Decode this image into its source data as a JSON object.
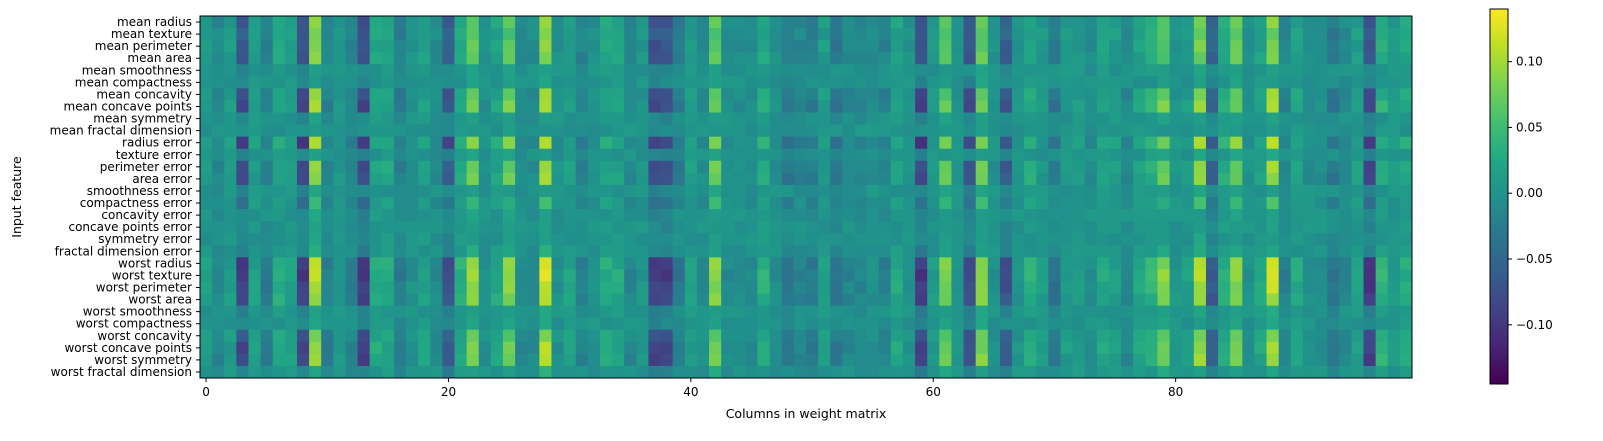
{
  "chart_data": {
    "type": "heatmap",
    "xlabel": "Columns in weight matrix",
    "ylabel": "Input feature",
    "rows": [
      "mean radius",
      "mean texture",
      "mean perimeter",
      "mean area",
      "mean smoothness",
      "mean compactness",
      "mean concavity",
      "mean concave points",
      "mean symmetry",
      "mean fractal dimension",
      "radius error",
      "texture error",
      "perimeter error",
      "area error",
      "smoothness error",
      "compactness error",
      "concavity error",
      "concave points error",
      "symmetry error",
      "fractal dimension error",
      "worst radius",
      "worst texture",
      "worst perimeter",
      "worst area",
      "worst smoothness",
      "worst compactness",
      "worst concavity",
      "worst concave points",
      "worst symmetry",
      "worst fractal dimension"
    ],
    "n_columns": 100,
    "x_ticks": [
      0,
      20,
      40,
      60,
      80
    ],
    "colorbar": {
      "colormap": "viridis",
      "range": [
        -0.145,
        0.14
      ],
      "ticks": [
        0.1,
        0.05,
        0.0,
        -0.05,
        -0.1
      ],
      "tick_labels": [
        "0.10",
        "0.05",
        "0.00",
        "−0.05",
        "−0.10"
      ]
    },
    "strong_columns": {
      "positive": [
        9,
        22,
        25,
        28,
        42,
        61,
        64,
        79,
        82,
        85,
        88
      ],
      "negative": [
        3,
        8,
        13,
        20,
        37,
        38,
        59,
        63,
        66,
        83,
        96
      ]
    },
    "values": [],
    "grid": false,
    "colors": {
      "cmap_low": "#440154",
      "cmap_mid": "#21918c",
      "cmap_high": "#fde725"
    }
  }
}
